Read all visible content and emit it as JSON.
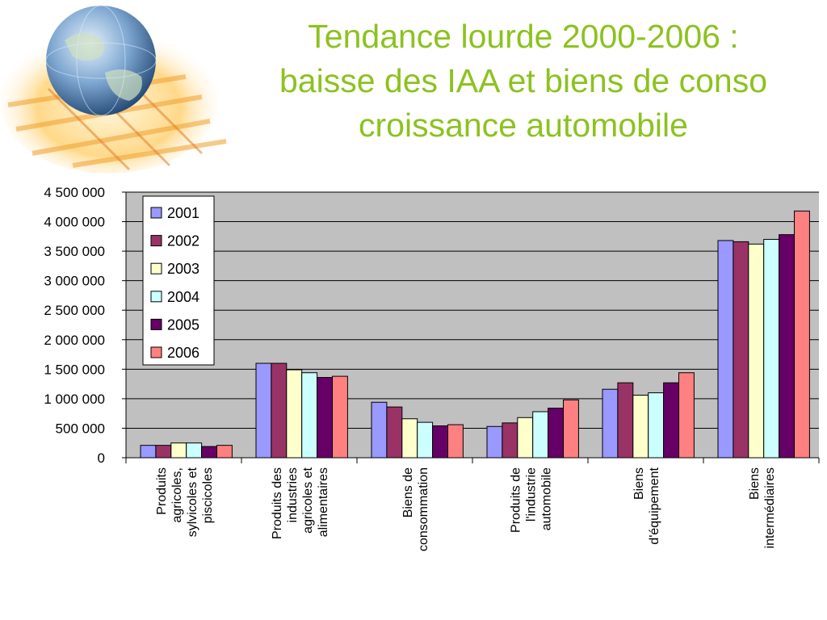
{
  "title": {
    "line1": "Tendance lourde 2000-2006 :",
    "line2": "baisse des IAA et biens de conso",
    "line3": "croissance automobile"
  },
  "colors": {
    "title": "#8cc21f",
    "plot_background": "#c0c0c0",
    "series": [
      "#9999ff",
      "#993366",
      "#ffffcc",
      "#ccffff",
      "#660066",
      "#ff8080"
    ]
  },
  "logo_icon": "globe-icon",
  "chart_data": {
    "type": "bar",
    "categories": [
      [
        "Produits",
        "agricoles,",
        "sylvicoles et",
        "piscicoles"
      ],
      [
        "Produits des",
        "industries",
        "agricoles et",
        "alimentaires"
      ],
      [
        "Biens de",
        "consommation"
      ],
      [
        "Produits de",
        "l'industrie",
        "automobile"
      ],
      [
        "Biens",
        "d'équipement"
      ],
      [
        "Biens",
        "intermédiaires"
      ]
    ],
    "series": [
      {
        "name": "2001",
        "values": [
          210000,
          1600000,
          940000,
          530000,
          1160000,
          3680000
        ]
      },
      {
        "name": "2002",
        "values": [
          210000,
          1600000,
          860000,
          590000,
          1270000,
          3660000
        ]
      },
      {
        "name": "2003",
        "values": [
          250000,
          1490000,
          660000,
          680000,
          1060000,
          3620000
        ]
      },
      {
        "name": "2004",
        "values": [
          250000,
          1440000,
          600000,
          780000,
          1100000,
          3700000
        ]
      },
      {
        "name": "2005",
        "values": [
          190000,
          1360000,
          540000,
          840000,
          1270000,
          3780000
        ]
      },
      {
        "name": "2006",
        "values": [
          210000,
          1380000,
          560000,
          980000,
          1440000,
          4180000
        ]
      }
    ],
    "ylim": [
      0,
      4500000
    ],
    "yticks": [
      {
        "value": 0,
        "label": "0"
      },
      {
        "value": 500000,
        "label": "500 000"
      },
      {
        "value": 1000000,
        "label": "1 000 000"
      },
      {
        "value": 1500000,
        "label": "1 500 000"
      },
      {
        "value": 2000000,
        "label": "2 000 000"
      },
      {
        "value": 2500000,
        "label": "2 500 000"
      },
      {
        "value": 3000000,
        "label": "3 000 000"
      },
      {
        "value": 3500000,
        "label": "3 500 000"
      },
      {
        "value": 4000000,
        "label": "4 000 000"
      },
      {
        "value": 4500000,
        "label": "4 500 000"
      }
    ],
    "grid": true,
    "legend_position": "top-left"
  }
}
